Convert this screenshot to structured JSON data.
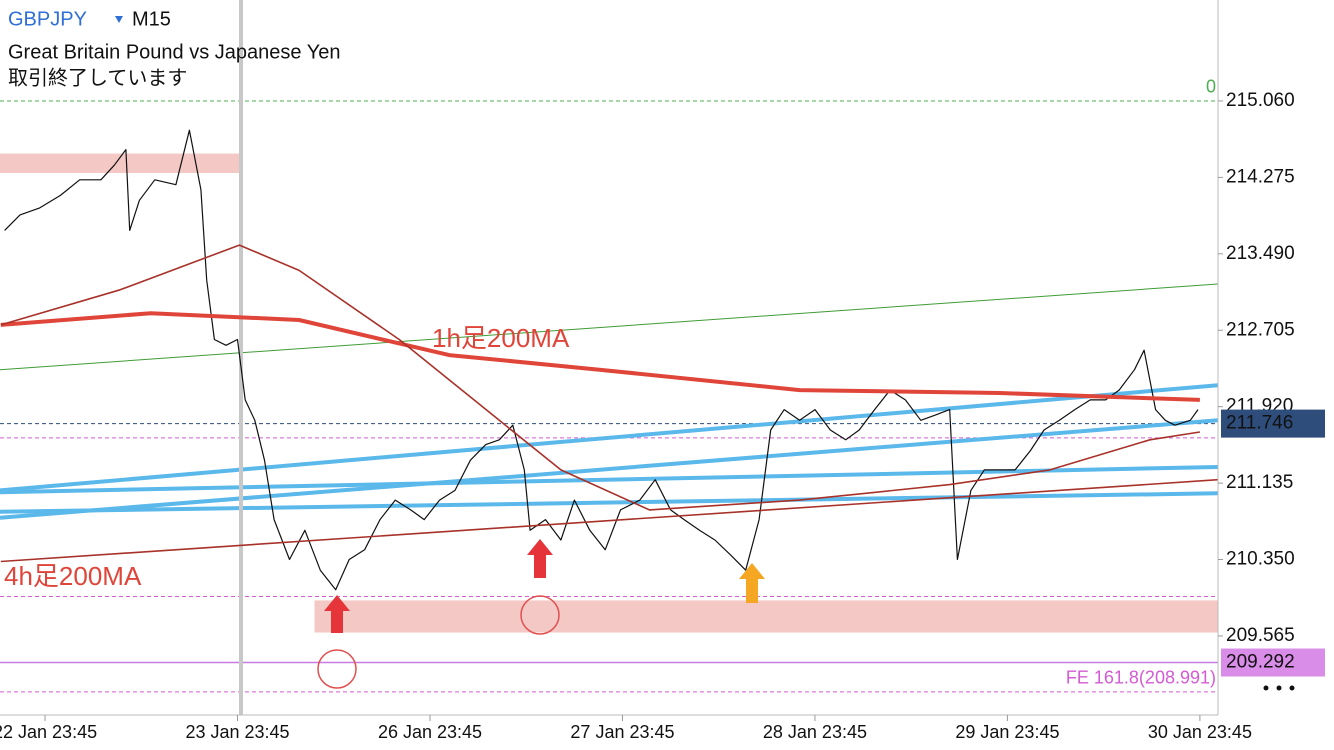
{
  "chart_data": {
    "type": "line",
    "symbol": "GBPJPY",
    "timeframe": "M15",
    "subtitle": "Great Britain Pound vs Japanese Yen",
    "status": "取引終了しています",
    "xlim": [
      -0.234,
      6.094
    ],
    "ylim": [
      208.753,
      216.097
    ],
    "xticks": [
      {
        "value": 0,
        "label": "22 Jan 23:45"
      },
      {
        "value": 1,
        "label": "23 Jan 23:45"
      },
      {
        "value": 2,
        "label": "26 Jan 23:45"
      },
      {
        "value": 3,
        "label": "27 Jan 23:45"
      },
      {
        "value": 4,
        "label": "28 Jan 23:45"
      },
      {
        "value": 5,
        "label": "29 Jan 23:45"
      },
      {
        "value": 6,
        "label": "30 Jan 23:45"
      }
    ],
    "yticks": [
      {
        "value": 215.06,
        "label": "215.060"
      },
      {
        "value": 214.275,
        "label": "214.275"
      },
      {
        "value": 213.49,
        "label": "213.490"
      },
      {
        "value": 212.705,
        "label": "212.705"
      },
      {
        "value": 211.92,
        "label": "211.920"
      },
      {
        "value": 211.135,
        "label": "211.135"
      },
      {
        "value": 210.35,
        "label": "210.350"
      },
      {
        "value": 209.565,
        "label": "209.565"
      }
    ],
    "series": [
      {
        "color": "#111111",
        "x": [
          -0.21,
          -0.13,
          -0.03,
          0.08,
          0.18,
          0.29,
          0.36,
          0.42,
          0.44,
          0.49,
          0.57,
          0.68,
          0.75,
          0.81,
          0.84,
          0.88,
          0.94,
          1.0,
          1.04,
          1.09,
          1.14,
          1.19,
          1.27,
          1.35,
          1.43,
          1.51,
          1.58,
          1.66,
          1.74,
          1.82,
          1.9,
          1.97,
          2.05,
          2.13,
          2.21,
          2.29,
          2.36,
          2.43,
          2.49,
          2.52,
          2.6,
          2.68,
          2.75,
          2.83,
          2.91,
          2.99,
          3.09,
          3.17,
          3.25,
          3.32,
          3.4,
          3.48,
          3.56,
          3.64,
          3.71,
          3.77,
          3.84,
          3.92,
          4.0,
          4.08,
          4.16,
          4.23,
          4.31,
          4.39,
          4.47,
          4.55,
          4.62,
          4.7,
          4.74,
          4.81,
          4.88,
          4.96,
          5.04,
          5.12,
          5.19,
          5.27,
          5.35,
          5.43,
          5.51,
          5.58,
          5.66,
          5.71,
          5.77,
          5.82,
          5.87,
          5.95,
          5.99
        ],
        "values": [
          213.73,
          213.89,
          213.96,
          214.09,
          214.25,
          214.25,
          214.4,
          214.56,
          213.73,
          214.04,
          214.25,
          214.2,
          214.76,
          214.15,
          213.22,
          212.61,
          212.55,
          212.61,
          211.99,
          211.78,
          211.37,
          210.76,
          210.35,
          210.65,
          210.24,
          210.04,
          210.35,
          210.45,
          210.76,
          210.96,
          210.86,
          210.76,
          210.96,
          211.06,
          211.37,
          211.53,
          211.58,
          211.73,
          211.27,
          210.65,
          210.76,
          210.55,
          210.96,
          210.65,
          210.45,
          210.86,
          210.96,
          211.17,
          210.86,
          210.76,
          210.65,
          210.55,
          210.4,
          210.24,
          210.76,
          211.68,
          211.89,
          211.78,
          211.89,
          211.68,
          211.58,
          211.68,
          211.89,
          212.09,
          211.99,
          211.78,
          211.83,
          211.89,
          210.35,
          211.06,
          211.27,
          211.27,
          211.27,
          211.47,
          211.68,
          211.78,
          211.89,
          211.99,
          211.99,
          212.09,
          212.3,
          212.5,
          211.89,
          211.78,
          211.73,
          211.78,
          211.89
        ]
      },
      {
        "color": "#e0453a",
        "x": [
          -0.23,
          0.55,
          1.32,
          2.1,
          2.88,
          3.92,
          4.96,
          6.0
        ],
        "values": [
          212.76,
          212.88,
          212.81,
          212.45,
          212.3,
          212.09,
          212.06,
          211.99
        ]
      },
      {
        "color": "#a8322a",
        "x": [
          -0.23,
          0.39,
          1.01,
          1.32,
          1.84,
          2.36,
          2.68,
          3.14,
          3.92,
          4.7,
          5.22,
          5.74,
          6.0
        ],
        "values": [
          212.76,
          213.12,
          213.58,
          213.32,
          212.61,
          211.78,
          211.27,
          210.86,
          210.96,
          211.12,
          211.27,
          211.58,
          211.66
        ]
      },
      {
        "color": "#a8322a",
        "x": [
          -0.23,
          6.094
        ],
        "values": [
          210.33,
          211.17
        ]
      }
    ],
    "trendlines": [
      {
        "color": "#5bb8ea",
        "x": [
          -0.234,
          6.094
        ],
        "values": [
          211.06,
          212.14
        ]
      },
      {
        "color": "#5bb8ea",
        "x": [
          -0.234,
          6.094
        ],
        "values": [
          210.78,
          211.78
        ]
      },
      {
        "color": "#5bb8ea",
        "x": [
          -0.234,
          6.094
        ],
        "values": [
          211.04,
          211.3
        ]
      },
      {
        "color": "#5bb8ea",
        "x": [
          -0.234,
          6.094
        ],
        "values": [
          210.84,
          211.03
        ]
      },
      {
        "color": "#3f9c35",
        "x": [
          -0.234,
          6.094
        ],
        "values": [
          212.3,
          213.18
        ]
      }
    ],
    "zones": [
      {
        "color": "#f4c9c5",
        "x": [
          -0.234,
          1.013
        ],
        "values": [
          214.52,
          214.32
        ]
      },
      {
        "color": "#f4c9c5",
        "x": [
          1.4,
          6.094
        ],
        "values": [
          209.93,
          209.6
        ]
      }
    ],
    "levels": [
      {
        "value": 215.06,
        "color": "#4caf50",
        "label": "0"
      },
      {
        "value": 211.746,
        "color": "#2e4d7b"
      },
      {
        "value": 211.6,
        "color": "#d45bd4"
      },
      {
        "value": 209.97,
        "color": "#d45bd4"
      },
      {
        "value": 209.292,
        "color": "#c77be0"
      },
      {
        "value": 208.991,
        "color": "#d45bd4",
        "label": "FE 161.8(208.991)"
      }
    ],
    "price_tags": [
      {
        "value": 211.746,
        "color": "#2e4d7b"
      },
      {
        "value": 209.292,
        "color": "#d98de8"
      }
    ],
    "annotations": [
      "1h足200MA",
      "4h足200MA"
    ]
  }
}
